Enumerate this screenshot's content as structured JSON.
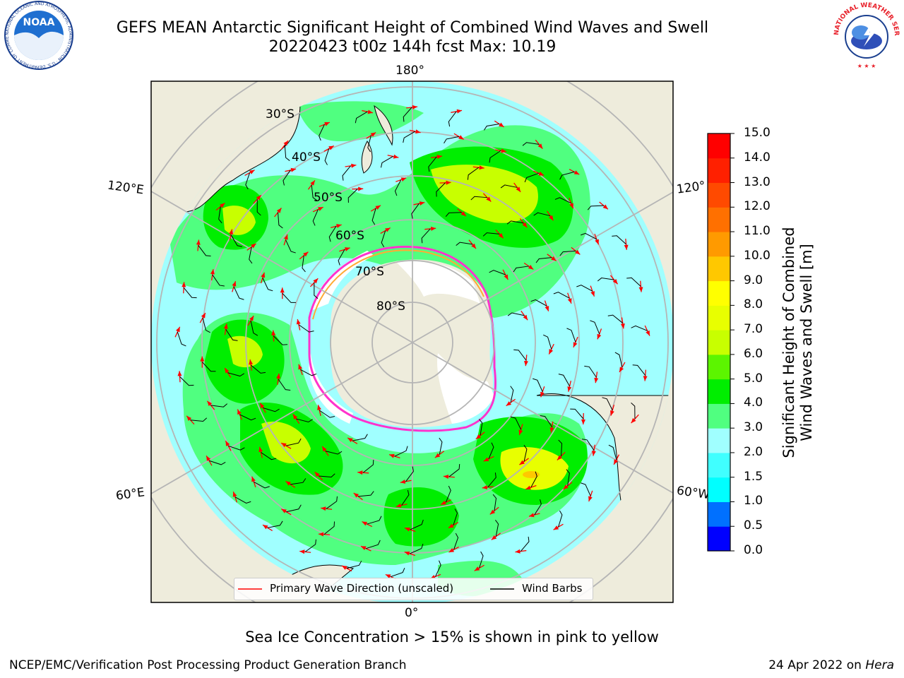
{
  "header": {
    "title_line1": "GEFS MEAN Antarctic Significant Height of Combined Wind Waves and Swell",
    "title_line2": "20220423 t00z 144h fcst   Max: 10.19"
  },
  "logos": {
    "noaa": "NOAA",
    "noaa_ring": "NATIONAL OCEANIC AND ATMOSPHERIC ADMINISTRATION · U.S. DEPARTMENT OF COMMERCE",
    "nws_ring": "NATIONAL WEATHER SERVICE"
  },
  "map": {
    "longitude_labels": {
      "top": "180°",
      "left_upper": "120°E",
      "right_upper": "120°",
      "left_lower": "60°E",
      "right_lower": "60°W",
      "bottom": "0°"
    },
    "latitude_labels": [
      "30°S",
      "40°S",
      "50°S",
      "60°S",
      "70°S",
      "80°S"
    ]
  },
  "legend": {
    "wave_label": "Primary Wave Direction (unscaled)",
    "barb_label": "Wind Barbs"
  },
  "colorbar": {
    "label_line1": "Significant Height of Combined",
    "label_line2": "Wind Waves and Swell [m]",
    "ticks": [
      "0.0",
      "0.5",
      "1.0",
      "1.5",
      "2.0",
      "3.0",
      "4.0",
      "5.0",
      "6.0",
      "7.0",
      "8.0",
      "9.0",
      "10.0",
      "11.0",
      "12.0",
      "13.0",
      "14.0",
      "15.0"
    ],
    "colors": [
      "#0000ff",
      "#0070ff",
      "#00ffff",
      "#40ffff",
      "#a0ffff",
      "#50ff80",
      "#00ee00",
      "#5cf500",
      "#c8ff00",
      "#e8ff00",
      "#ffff00",
      "#ffc800",
      "#ff9a00",
      "#ff7000",
      "#ff4a00",
      "#ff2000",
      "#ff0000"
    ]
  },
  "colors": {
    "land": "#eeecdc",
    "ocean_low": "#a0ffff",
    "ice_edge": "#ff33cc",
    "wave_arrow": "#ff0000",
    "grid": "#b5b5b5"
  },
  "footer": {
    "note": "Sea Ice Concentration > 15% is shown in pink to yellow",
    "credit": "NCEP/EMC/Verification Post Processing Product Generation Branch",
    "date": "24 Apr 2022 on",
    "system": "Hera"
  }
}
